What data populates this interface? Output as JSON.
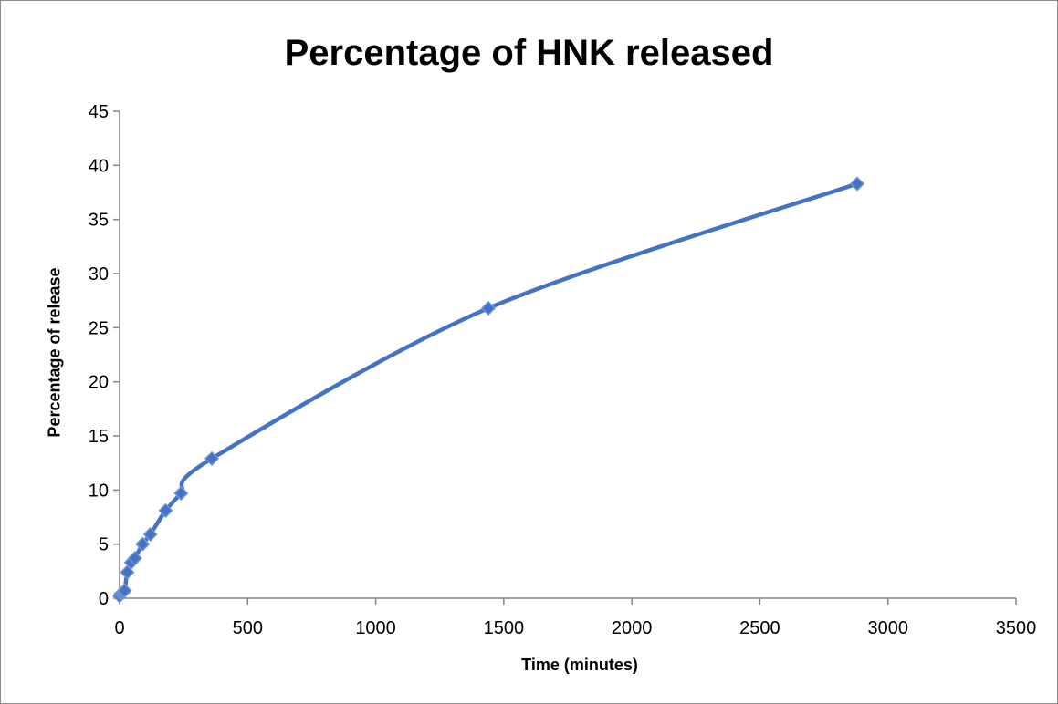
{
  "chart_data": {
    "type": "scatter",
    "title": "Percentage of HNK released",
    "xlabel": "Time (minutes)",
    "ylabel": "Percentage of release",
    "xlim": [
      0,
      3500
    ],
    "ylim": [
      0,
      45
    ],
    "xticks": [
      0,
      500,
      1000,
      1500,
      2000,
      2500,
      3000,
      3500
    ],
    "yticks": [
      0,
      5,
      10,
      15,
      20,
      25,
      30,
      35,
      40,
      45
    ],
    "grid": false,
    "legend": "none",
    "smooth_line": true,
    "series": [
      {
        "color": "#4472c4",
        "marker": "diamond",
        "x": [
          0,
          5,
          10,
          15,
          20,
          30,
          45,
          60,
          90,
          120,
          180,
          240,
          360,
          1440,
          2880
        ],
        "y": [
          0.2,
          0.4,
          0.5,
          0.6,
          0.7,
          2.4,
          3.3,
          3.7,
          5.0,
          5.9,
          8.1,
          9.7,
          12.9,
          26.8,
          38.3
        ]
      }
    ]
  }
}
